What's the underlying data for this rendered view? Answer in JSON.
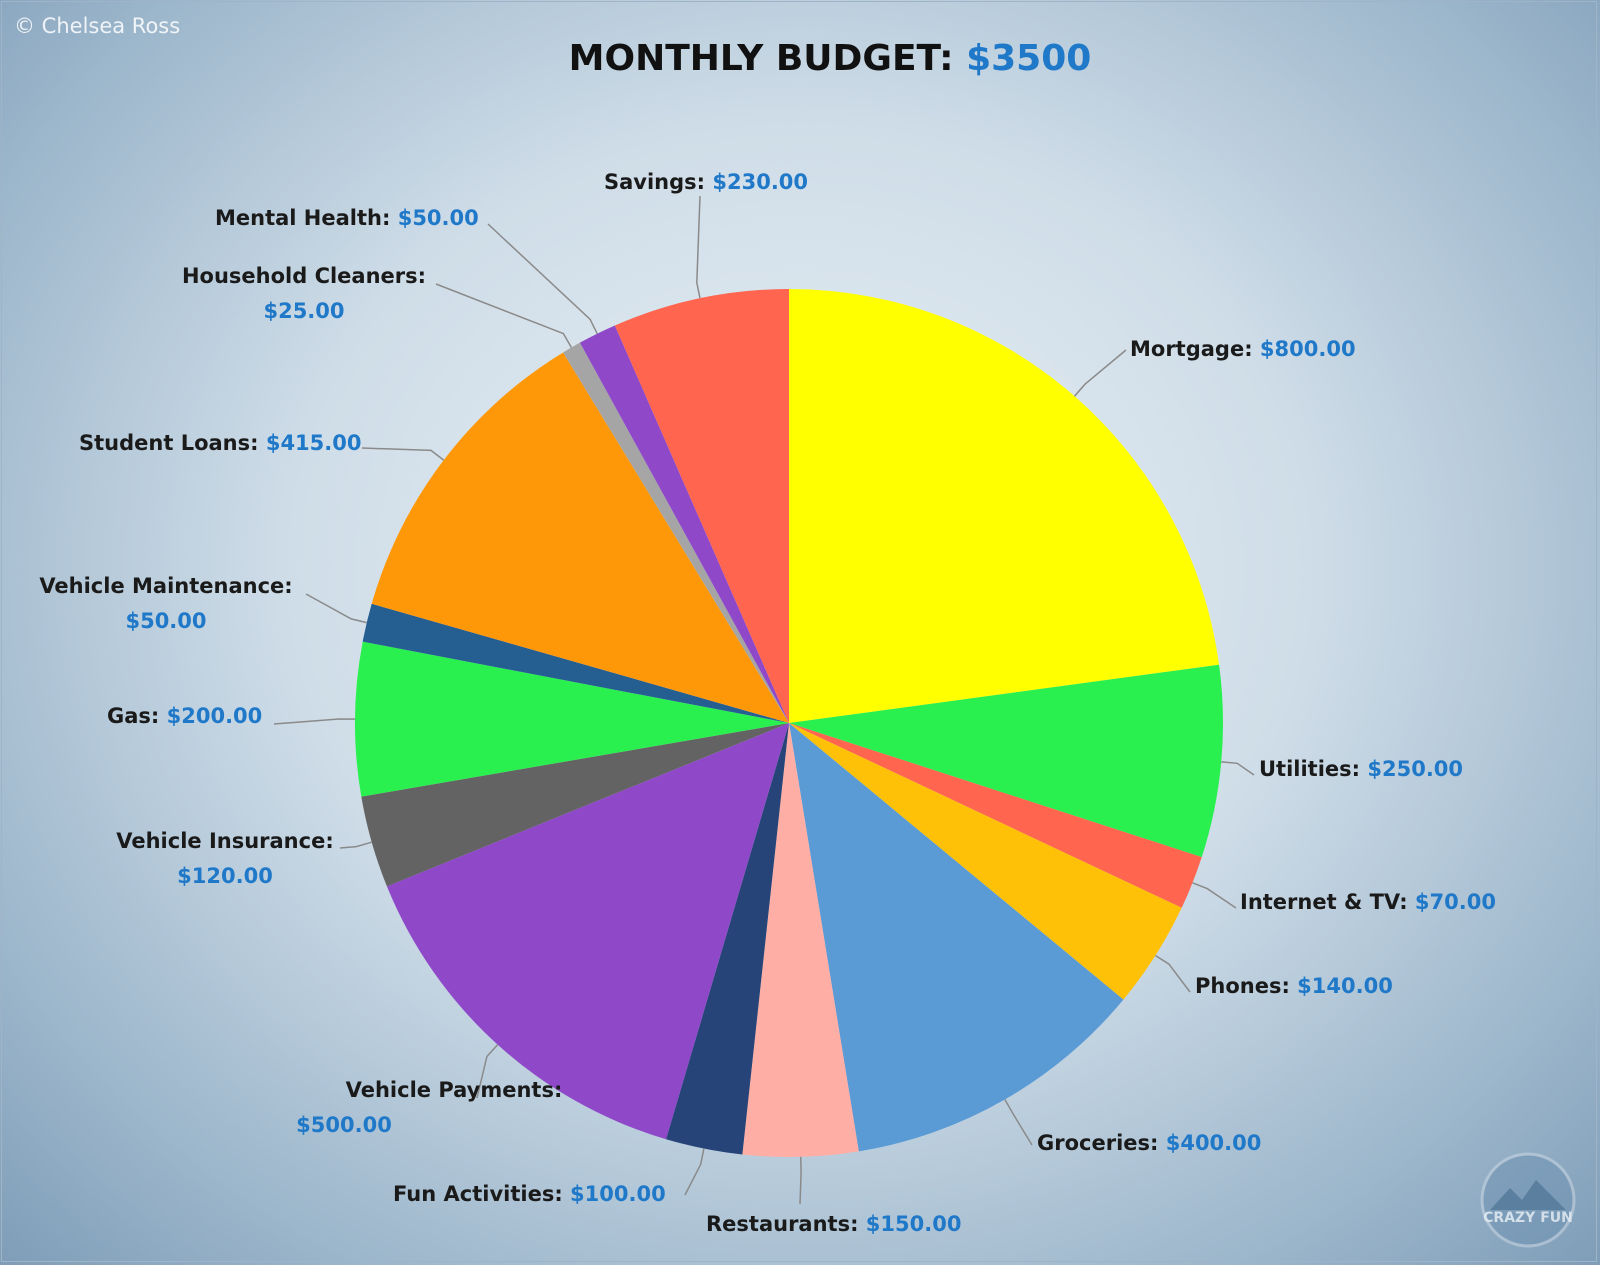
{
  "watermark": "© Chelsea Ross",
  "title": {
    "text": "MONTHLY BUDGET:",
    "amount": "$3500"
  },
  "logo_text": "CRAZY FUN",
  "colors": {
    "value_text": "#1f78c8",
    "label_text": "#1a1a1a",
    "leader": "#8a8a8a"
  },
  "chart_data": {
    "type": "pie",
    "title": "MONTHLY BUDGET: $3500",
    "total": 3500,
    "start_angle_deg": 0,
    "direction": "clockwise",
    "slices": [
      {
        "name": "Mortgage",
        "value": 800,
        "label": "Mortgage:",
        "value_label": "$800.00",
        "color": "#ffff00"
      },
      {
        "name": "Utilities",
        "value": 250,
        "label": "Utilities:",
        "value_label": "$250.00",
        "color": "#2af04f"
      },
      {
        "name": "Internet & TV",
        "value": 70,
        "label": "Internet & TV:",
        "value_label": "$70.00",
        "color": "#ff654f"
      },
      {
        "name": "Phones",
        "value": 140,
        "label": "Phones:",
        "value_label": "$140.00",
        "color": "#ffc107"
      },
      {
        "name": "Groceries",
        "value": 400,
        "label": "Groceries:",
        "value_label": "$400.00",
        "color": "#5b9bd5"
      },
      {
        "name": "Restaurants",
        "value": 150,
        "label": "Restaurants:",
        "value_label": "$150.00",
        "color": "#ffaea5"
      },
      {
        "name": "Fun Activities",
        "value": 100,
        "label": "Fun Activities:",
        "value_label": "$100.00",
        "color": "#264478"
      },
      {
        "name": "Vehicle Payments",
        "value": 500,
        "label": "Vehicle Payments:",
        "value_label": "$500.00",
        "color": "#8e48c8"
      },
      {
        "name": "Vehicle Insurance",
        "value": 120,
        "label": "Vehicle Insurance:",
        "value_label": "$120.00",
        "color": "#636363"
      },
      {
        "name": "Gas",
        "value": 200,
        "label": "Gas:",
        "value_label": "$200.00",
        "color": "#2af04f"
      },
      {
        "name": "Vehicle Maintenance",
        "value": 50,
        "label": "Vehicle Maintenance:",
        "value_label": "$50.00",
        "color": "#255e91"
      },
      {
        "name": "Student Loans",
        "value": 415,
        "label": "Student Loans:",
        "value_label": "$415.00",
        "color": "#ff9808"
      },
      {
        "name": "Household Cleaners",
        "value": 25,
        "label": "Household Cleaners:",
        "value_label": "$25.00",
        "color": "#a5a5a5"
      },
      {
        "name": "Mental Health",
        "value": 50,
        "label": "Mental Health:",
        "value_label": "$50.00",
        "color": "#8e48c8"
      },
      {
        "name": "Savings",
        "value": 230,
        "label": "Savings:",
        "value_label": "$230.00",
        "color": "#ff654f"
      }
    ]
  }
}
